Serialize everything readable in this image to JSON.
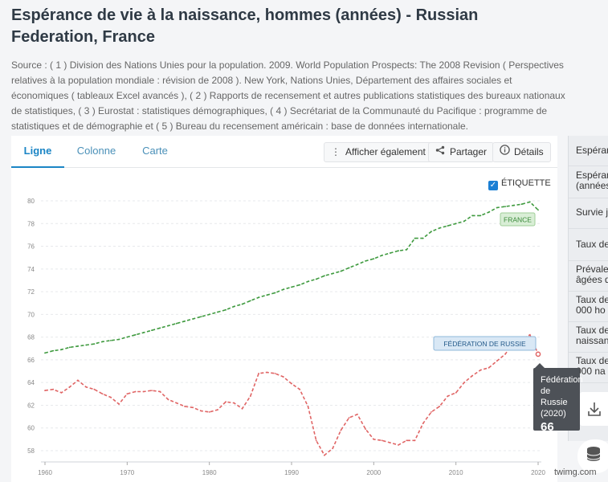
{
  "page": {
    "title": "Espérance de vie à la naissance, hommes (années) - Russian Federation, France",
    "source": "Source : ( 1 ) Division des Nations Unies pour la population. 2009. World Population Prospects: The 2008 Revision ( Perspectives relatives à la population mondiale : révision de 2008 ). New York, Nations Unies, Département des affaires sociales et économiques ( tableaux Excel avancés ), ( 2 ) Rapports de recensement et autres publications statistiques des bureaux nationaux de statistiques, ( 3 ) Eurostat : statistiques démographiques, ( 4 ) Secrétariat de la Communauté du Pacifique : programme de statistiques et de démographie et ( 5 ) Bureau du recensement américain : base de données internationale."
  },
  "tabs": {
    "line": "Ligne",
    "column": "Colonne",
    "map": "Carte"
  },
  "actions": {
    "show_also": "Afficher également",
    "share": "Partager",
    "details": "Détails"
  },
  "label_toggle": "ÉTIQUETTE",
  "colors": {
    "accent": "#1b85c5",
    "france": "#3f9a3f",
    "russia": "#e06565"
  },
  "right_panel": {
    "items": [
      "Espéran",
      "Espéran (années",
      "Survie ju",
      "Taux de",
      "Prévaler âgées de",
      "Taux de 1 000 ho",
      "Taux de naissanc",
      "Taux de 1 000 na"
    ]
  },
  "tooltip": {
    "name": "Fédération de Russie",
    "year": "(2020)",
    "value": "66"
  },
  "watermark": "twimg.com",
  "chart_data": {
    "type": "line",
    "xlim": [
      1960,
      2020
    ],
    "ylim": [
      57,
      81
    ],
    "x_ticks": [
      1960,
      1970,
      1980,
      1990,
      2000,
      2010,
      2020
    ],
    "y_ticks": [
      58,
      60,
      62,
      64,
      66,
      68,
      70,
      72,
      74,
      76,
      78,
      80
    ],
    "grid": true,
    "series": [
      {
        "name": "FRANCE",
        "color": "#3f9a3f",
        "x": [
          1960,
          1961,
          1962,
          1963,
          1964,
          1965,
          1966,
          1967,
          1968,
          1969,
          1970,
          1971,
          1972,
          1973,
          1974,
          1975,
          1976,
          1977,
          1978,
          1979,
          1980,
          1981,
          1982,
          1983,
          1984,
          1985,
          1986,
          1987,
          1988,
          1989,
          1990,
          1991,
          1992,
          1993,
          1994,
          1995,
          1996,
          1997,
          1998,
          1999,
          2000,
          2001,
          2002,
          2003,
          2004,
          2005,
          2006,
          2007,
          2008,
          2009,
          2010,
          2011,
          2012,
          2013,
          2014,
          2015,
          2016,
          2017,
          2018,
          2019,
          2020
        ],
        "values": [
          66.6,
          66.8,
          66.9,
          67.1,
          67.2,
          67.3,
          67.4,
          67.6,
          67.7,
          67.8,
          68.0,
          68.2,
          68.4,
          68.6,
          68.8,
          69.0,
          69.2,
          69.4,
          69.6,
          69.8,
          70.0,
          70.2,
          70.4,
          70.7,
          70.9,
          71.2,
          71.5,
          71.7,
          71.9,
          72.2,
          72.4,
          72.6,
          72.9,
          73.1,
          73.4,
          73.6,
          73.8,
          74.1,
          74.4,
          74.7,
          74.9,
          75.2,
          75.4,
          75.6,
          75.7,
          76.7,
          76.7,
          77.3,
          77.6,
          77.8,
          78.0,
          78.2,
          78.7,
          78.7,
          79.0,
          79.4,
          79.5,
          79.6,
          79.7,
          79.9,
          79.2
        ]
      },
      {
        "name": "FÉDÉRATION DE RUSSIE",
        "color": "#e06565",
        "x": [
          1960,
          1961,
          1962,
          1963,
          1964,
          1965,
          1966,
          1967,
          1968,
          1969,
          1970,
          1971,
          1972,
          1973,
          1974,
          1975,
          1976,
          1977,
          1978,
          1979,
          1980,
          1981,
          1982,
          1983,
          1984,
          1985,
          1986,
          1987,
          1988,
          1989,
          1990,
          1991,
          1992,
          1993,
          1994,
          1995,
          1996,
          1997,
          1998,
          1999,
          2000,
          2001,
          2002,
          2003,
          2004,
          2005,
          2006,
          2007,
          2008,
          2009,
          2010,
          2011,
          2012,
          2013,
          2014,
          2015,
          2016,
          2017,
          2018,
          2019,
          2020
        ],
        "values": [
          63.3,
          63.4,
          63.1,
          63.6,
          64.2,
          63.6,
          63.4,
          63.0,
          62.7,
          62.1,
          63.0,
          63.2,
          63.2,
          63.3,
          63.2,
          62.5,
          62.2,
          61.9,
          61.8,
          61.5,
          61.4,
          61.6,
          62.3,
          62.2,
          61.7,
          62.8,
          64.8,
          64.9,
          64.8,
          64.5,
          63.9,
          63.4,
          61.9,
          58.9,
          57.6,
          58.2,
          59.8,
          60.9,
          61.2,
          59.9,
          59.0,
          58.9,
          58.7,
          58.5,
          58.9,
          58.9,
          60.4,
          61.4,
          61.9,
          62.8,
          63.1,
          64.0,
          64.6,
          65.1,
          65.3,
          65.9,
          66.5,
          67.5,
          67.8,
          68.2,
          66.5
        ]
      }
    ]
  }
}
